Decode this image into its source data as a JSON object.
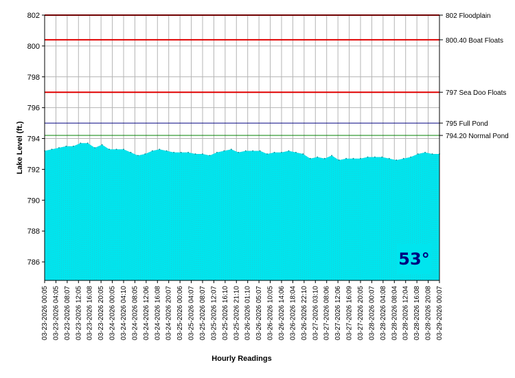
{
  "chart_data": {
    "type": "area",
    "title": "",
    "xlabel": "Hourly Readings",
    "ylabel": "Lake Level (ft.)",
    "ylim": [
      784.8,
      802
    ],
    "yticks": [
      786,
      788,
      790,
      792,
      794,
      796,
      798,
      800,
      802
    ],
    "grid": true,
    "fill_color": "#00e5ee",
    "x_tick_labels": [
      "03-23-2026 00:05",
      "03-23-2026 04:05",
      "03-23-2026 08:07",
      "03-23-2026 12:05",
      "03-23-2026 16:08",
      "03-23-2026 20:05",
      "03-24-2026 00:05",
      "03-24-2026 04:10",
      "03-24-2026 08:05",
      "03-24-2026 12:06",
      "03-24-2026 16:08",
      "03-24-2026 20:07",
      "03-25-2026 00:06",
      "03-25-2026 04:07",
      "03-25-2026 08:07",
      "03-25-2026 12:07",
      "03-25-2026 16:10",
      "03-25-2026 21:10",
      "03-26-2026 01:10",
      "03-26-2026 05:07",
      "03-26-2026 10:05",
      "03-26-2026 14:06",
      "03-26-2026 18:04",
      "03-26-2026 22:10",
      "03-27-2026 03:10",
      "03-27-2026 08:06",
      "03-27-2026 12:06",
      "03-27-2026 16:09",
      "03-27-2026 20:05",
      "03-28-2026 00:07",
      "03-28-2026 04:08",
      "03-28-2026 08:04",
      "03-28-2026 12:04",
      "03-28-2026 16:08",
      "03-28-2026 20:08",
      "03-29-2026 00:07"
    ],
    "series": [
      {
        "values": [
          793.2,
          793.3,
          793.4,
          793.5,
          793.5,
          793.7,
          793.7,
          793.4,
          793.6,
          793.3,
          793.3,
          793.3,
          793.1,
          792.9,
          793.0,
          793.2,
          793.3,
          793.2,
          793.1,
          793.1,
          793.1,
          793.0,
          793.0,
          792.9,
          793.1,
          793.2,
          793.3,
          793.1,
          793.2,
          793.2,
          793.2,
          793.0,
          793.1,
          793.1,
          793.2,
          793.1,
          793.0,
          792.7,
          792.8,
          792.7,
          792.9,
          792.6,
          792.7,
          792.7,
          792.7,
          792.8,
          792.8,
          792.8,
          792.7,
          792.6,
          792.7,
          792.8,
          793.0,
          793.1,
          793.0,
          793.0
        ]
      }
    ],
    "reference_lines": [
      {
        "value": 802,
        "label": "802 Floodplain",
        "color": "#e00000"
      },
      {
        "value": 800.4,
        "label": "800.40 Boat Floats",
        "color": "#e00000"
      },
      {
        "value": 797,
        "label": "797 Sea Doo Floats",
        "color": "#e00000"
      },
      {
        "value": 795,
        "label": "795 Full Pond",
        "color": "#000080"
      },
      {
        "value": 794.2,
        "label": "794.20 Normal Pond",
        "color": "#008000"
      }
    ]
  },
  "temperature_badge": "53°"
}
